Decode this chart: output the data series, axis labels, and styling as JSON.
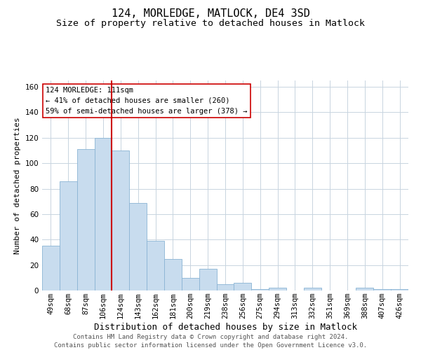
{
  "title": "124, MORLEDGE, MATLOCK, DE4 3SD",
  "subtitle": "Size of property relative to detached houses in Matlock",
  "xlabel": "Distribution of detached houses by size in Matlock",
  "ylabel": "Number of detached properties",
  "bar_color": "#c8dcee",
  "bar_edge_color": "#8ab4d4",
  "background_color": "#ffffff",
  "grid_color": "#c8d4e0",
  "annotation_line_color": "#cc0000",
  "annotation_box_edge": "#cc0000",
  "categories": [
    "49sqm",
    "68sqm",
    "87sqm",
    "106sqm",
    "124sqm",
    "143sqm",
    "162sqm",
    "181sqm",
    "200sqm",
    "219sqm",
    "238sqm",
    "256sqm",
    "275sqm",
    "294sqm",
    "313sqm",
    "332sqm",
    "351sqm",
    "369sqm",
    "388sqm",
    "407sqm",
    "426sqm"
  ],
  "values": [
    35,
    86,
    111,
    120,
    110,
    69,
    39,
    25,
    10,
    17,
    5,
    6,
    1,
    2,
    0,
    2,
    0,
    0,
    2,
    1,
    1
  ],
  "red_line_x": 3.5,
  "annotation_text": "124 MORLEDGE: 111sqm\n← 41% of detached houses are smaller (260)\n59% of semi-detached houses are larger (378) →",
  "ylim": [
    0,
    165
  ],
  "yticks": [
    0,
    20,
    40,
    60,
    80,
    100,
    120,
    140,
    160
  ],
  "footer_line1": "Contains HM Land Registry data © Crown copyright and database right 2024.",
  "footer_line2": "Contains public sector information licensed under the Open Government Licence v3.0.",
  "title_fontsize": 11,
  "subtitle_fontsize": 9.5,
  "xlabel_fontsize": 9,
  "ylabel_fontsize": 8,
  "tick_fontsize": 7.5,
  "annotation_fontsize": 7.5,
  "footer_fontsize": 6.5
}
